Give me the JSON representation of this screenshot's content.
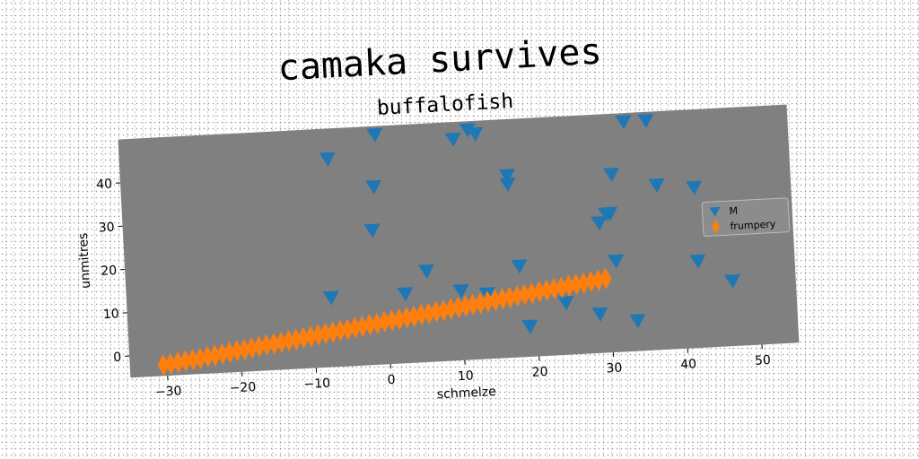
{
  "chart_data": {
    "type": "scatter",
    "title": "camaka survives",
    "subtitle": "buffalofish",
    "xlabel": "schmelze",
    "ylabel": "unmitres",
    "xlim": [
      -35,
      55
    ],
    "ylim": [
      -5,
      50
    ],
    "xticks": [
      -30,
      -20,
      -10,
      0,
      10,
      20,
      30,
      40,
      50
    ],
    "yticks": [
      0,
      10,
      20,
      30,
      40
    ],
    "tick_labels_x": [
      "−30",
      "−20",
      "−10",
      "0",
      "10",
      "20",
      "30",
      "40",
      "50"
    ],
    "tick_labels_y": [
      "0",
      "10",
      "20",
      "30",
      "40"
    ],
    "grid": false,
    "legend_position": "center-right",
    "background": "#808080",
    "series": [
      {
        "name": "M",
        "marker": "triangle-down",
        "color": "#1f77b4",
        "points": [
          [
            -7,
            43
          ],
          [
            -0.5,
            48
          ],
          [
            -1,
            36
          ],
          [
            -1.5,
            26
          ],
          [
            -7.5,
            11
          ],
          [
            2.5,
            11
          ],
          [
            5.5,
            16
          ],
          [
            10,
            46
          ],
          [
            12,
            48
          ],
          [
            13,
            47
          ],
          [
            10,
            11
          ],
          [
            13.5,
            10
          ],
          [
            17,
            37
          ],
          [
            17,
            35
          ],
          [
            18,
            16
          ],
          [
            19,
            2
          ],
          [
            24,
            7
          ],
          [
            28.5,
            4
          ],
          [
            29,
            25
          ],
          [
            30,
            27
          ],
          [
            30.5,
            27
          ],
          [
            31,
            36
          ],
          [
            31,
            16
          ],
          [
            33,
            48
          ],
          [
            33.5,
            2
          ],
          [
            36,
            48
          ],
          [
            37,
            33
          ],
          [
            42,
            32
          ],
          [
            42,
            15
          ],
          [
            46.5,
            10
          ]
        ]
      },
      {
        "name": "frumpery",
        "marker": "thin-diamond",
        "color": "#ff7f0e",
        "points": [
          [
            -30.5,
            -2.5
          ],
          [
            -29.5,
            -2.3
          ],
          [
            -28.5,
            -2.1
          ],
          [
            -27.5,
            -1.8
          ],
          [
            -26.5,
            -1.6
          ],
          [
            -25.5,
            -1.4
          ],
          [
            -24.5,
            -1.1
          ],
          [
            -23.5,
            -0.9
          ],
          [
            -22.5,
            -0.6
          ],
          [
            -21.5,
            -0.4
          ],
          [
            -20.5,
            -0.1
          ],
          [
            -19.5,
            0.1
          ],
          [
            -18.5,
            0.4
          ],
          [
            -17.5,
            0.6
          ],
          [
            -16.5,
            0.9
          ],
          [
            -15.5,
            1.1
          ],
          [
            -14.5,
            1.3
          ],
          [
            -13.5,
            1.6
          ],
          [
            -12.5,
            1.8
          ],
          [
            -11.5,
            2.1
          ],
          [
            -10.5,
            2.3
          ],
          [
            -9.5,
            2.6
          ],
          [
            -8.5,
            2.8
          ],
          [
            -7.5,
            3.0
          ],
          [
            -6.5,
            3.3
          ],
          [
            -5.5,
            3.5
          ],
          [
            -4.5,
            3.8
          ],
          [
            -3.5,
            4.0
          ],
          [
            -2.5,
            4.3
          ],
          [
            -1.5,
            4.5
          ],
          [
            -0.5,
            4.8
          ],
          [
            0.5,
            5.0
          ],
          [
            1.5,
            5.2
          ],
          [
            2.5,
            5.5
          ],
          [
            3.5,
            5.7
          ],
          [
            4.5,
            6.0
          ],
          [
            5.5,
            6.2
          ],
          [
            6.5,
            6.5
          ],
          [
            7.5,
            6.7
          ],
          [
            8.5,
            7.0
          ],
          [
            9.5,
            7.2
          ],
          [
            10.5,
            7.4
          ],
          [
            11.5,
            7.7
          ],
          [
            12.5,
            7.9
          ],
          [
            13.5,
            8.2
          ],
          [
            14.5,
            8.4
          ],
          [
            15.5,
            8.7
          ],
          [
            16.5,
            8.9
          ],
          [
            17.5,
            9.1
          ],
          [
            18.5,
            9.4
          ],
          [
            19.5,
            9.6
          ],
          [
            20.5,
            9.9
          ],
          [
            21.5,
            10.1
          ],
          [
            22.5,
            10.4
          ],
          [
            23.5,
            10.6
          ],
          [
            24.5,
            10.9
          ],
          [
            25.5,
            11.1
          ],
          [
            26.5,
            11.3
          ],
          [
            27.5,
            11.6
          ],
          [
            28.5,
            11.8
          ],
          [
            29.5,
            12.1
          ]
        ]
      }
    ]
  }
}
